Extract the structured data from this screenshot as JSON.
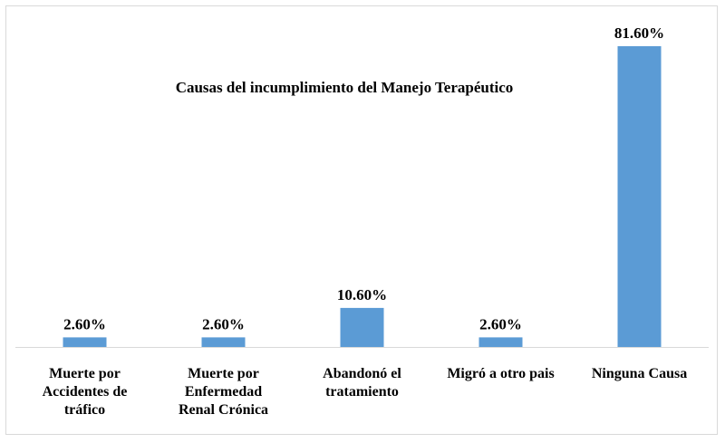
{
  "chart_data": {
    "type": "bar",
    "title": "Causas del incumplimiento del Manejo Terapéutico",
    "xlabel": "",
    "ylabel": "",
    "categories": [
      [
        "Muerte por",
        "Accidentes de",
        "tráfico"
      ],
      [
        "Muerte por",
        "Enfermedad",
        "Renal Crónica"
      ],
      [
        "Abandonó el",
        "tratamiento"
      ],
      [
        "Migró a otro pais"
      ],
      [
        "Ninguna Causa"
      ]
    ],
    "values": [
      2.6,
      2.6,
      10.6,
      2.6,
      81.6
    ],
    "data_labels": [
      "2.60%",
      "2.60%",
      "10.60%",
      "2.60%",
      "81.60%"
    ],
    "value_unit": "%",
    "ylim": [
      0,
      81.6
    ],
    "grid": false,
    "legend": "none",
    "colors": {
      "bar": "#5b9bd5",
      "axis": "#d9d9d9",
      "text": "#000000"
    }
  }
}
